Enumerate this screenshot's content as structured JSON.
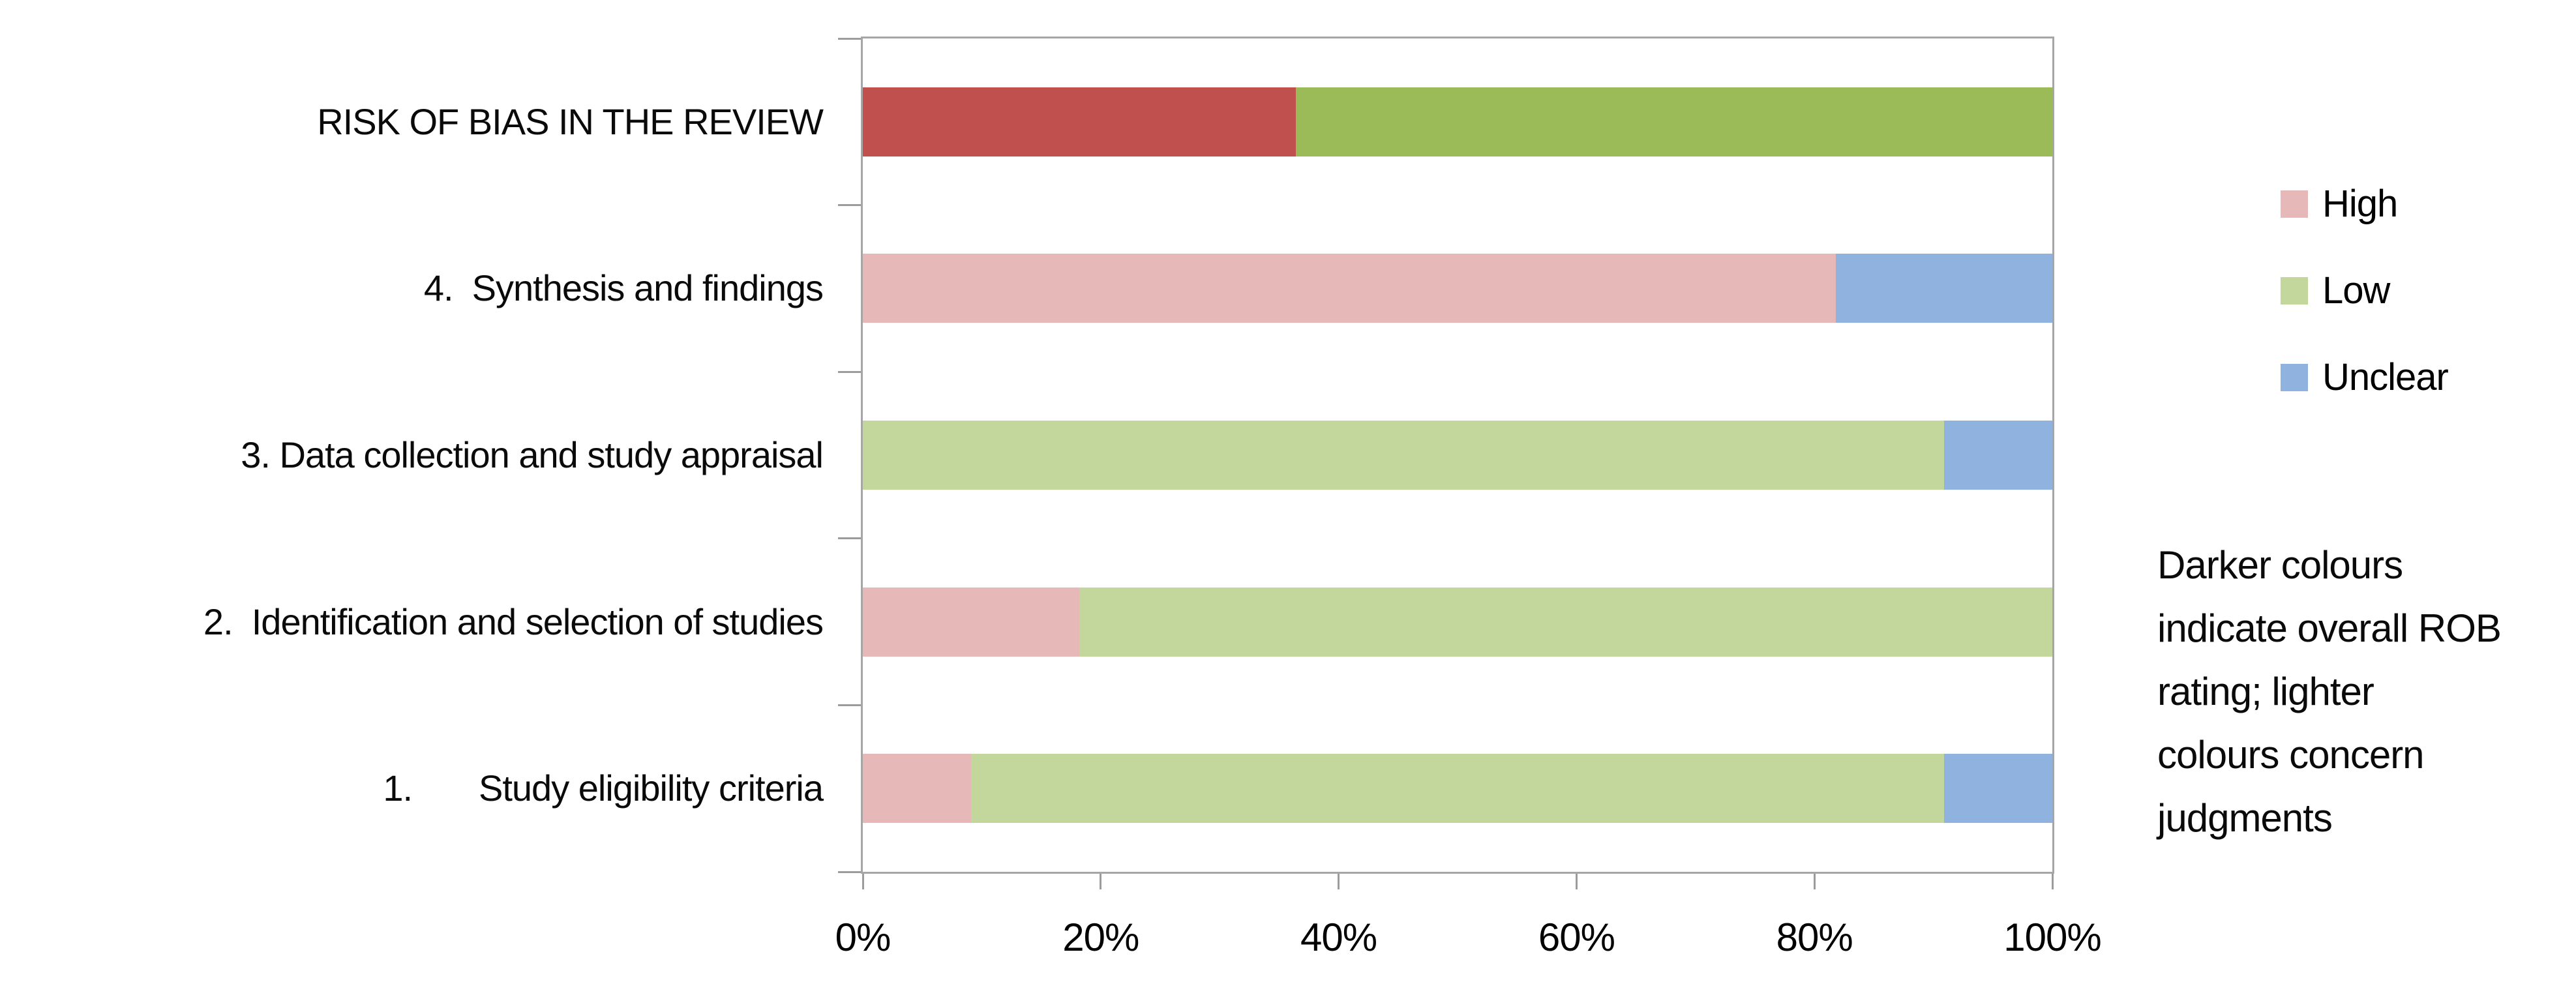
{
  "chart_data": {
    "type": "bar",
    "orientation": "horizontal",
    "stacked": true,
    "title": "",
    "xlabel": "",
    "ylabel": "",
    "x_range": [
      0,
      100
    ],
    "x_ticks": [
      "0%",
      "20%",
      "40%",
      "60%",
      "80%",
      "100%"
    ],
    "grid": false,
    "legend_position": "right",
    "rows": [
      {
        "label": "RISK OF BIAS IN THE REVIEW",
        "segments": [
          {
            "name": "High",
            "value": 36.4,
            "color_key": "high_dark"
          },
          {
            "name": "Low",
            "value": 63.6,
            "color_key": "low_dark"
          }
        ]
      },
      {
        "label": "4.  Synthesis and findings",
        "segments": [
          {
            "name": "High",
            "value": 81.8,
            "color_key": "high_light"
          },
          {
            "name": "Unclear",
            "value": 18.2,
            "color_key": "unclear"
          }
        ]
      },
      {
        "label": "3. Data collection and study appraisal",
        "segments": [
          {
            "name": "Low",
            "value": 90.9,
            "color_key": "low_light"
          },
          {
            "name": "Unclear",
            "value": 9.1,
            "color_key": "unclear"
          }
        ]
      },
      {
        "label": "2.  Identification and selection of studies",
        "segments": [
          {
            "name": "High",
            "value": 18.2,
            "color_key": "high_light"
          },
          {
            "name": "Low",
            "value": 81.8,
            "color_key": "low_light"
          }
        ]
      },
      {
        "label": "1.       Study eligibility criteria",
        "segments": [
          {
            "name": "High",
            "value": 9.1,
            "color_key": "high_light"
          },
          {
            "name": "Low",
            "value": 81.8,
            "color_key": "low_light"
          },
          {
            "name": "Unclear",
            "value": 9.1,
            "color_key": "unclear"
          }
        ]
      }
    ],
    "series": [
      {
        "name": "High",
        "values": [
          36.4,
          81.8,
          0,
          18.2,
          9.1
        ]
      },
      {
        "name": "Low",
        "values": [
          63.6,
          0,
          90.9,
          81.8,
          81.8
        ]
      },
      {
        "name": "Unclear",
        "values": [
          0,
          18.2,
          9.1,
          0,
          9.1
        ]
      }
    ],
    "colors": {
      "high_dark": "#C0504D",
      "low_dark": "#9BBB59",
      "high_light": "#E6B8B7",
      "low_light": "#C3D69B",
      "unclear": "#8FB3DE",
      "axis_gray": "#A6A6A6"
    }
  },
  "legend": {
    "items": [
      {
        "label": "High",
        "color": "#E6B8B7"
      },
      {
        "label": "Low",
        "color": "#C3D69B"
      },
      {
        "label": "Unclear",
        "color": "#8FB3DE"
      }
    ]
  },
  "note": {
    "text": "Darker colours\nindicate overall ROB\nrating;  lighter\ncolours concern\njudgments"
  }
}
